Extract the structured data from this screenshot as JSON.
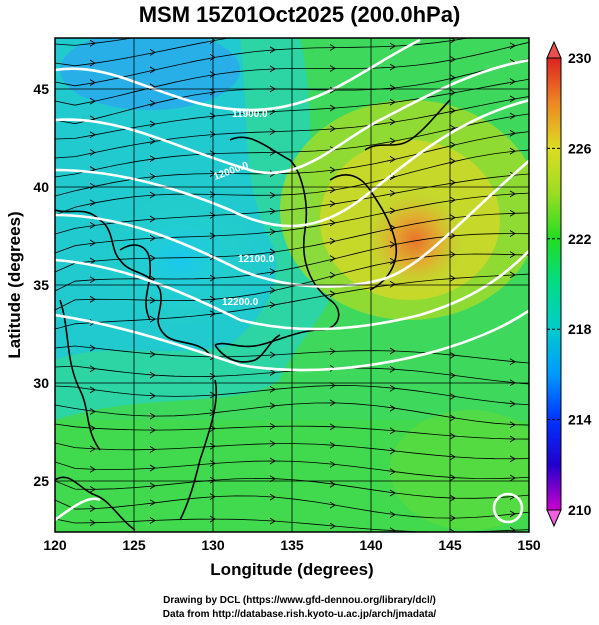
{
  "title": "MSM 15Z01Oct2025 (200.0hPa)",
  "x_axis": {
    "label": "Longitude (degrees)",
    "min": 120,
    "max": 150,
    "ticks": [
      "120",
      "125",
      "130",
      "135",
      "140",
      "145",
      "150"
    ]
  },
  "y_axis": {
    "label": "Latitude  (degrees)",
    "min": 22.4,
    "max": 47.6,
    "ticks": [
      "25",
      "30",
      "35",
      "40",
      "45"
    ]
  },
  "colorbar": {
    "min": 210,
    "max": 230,
    "ticks": [
      "210",
      "214",
      "218",
      "222",
      "226",
      "230"
    ],
    "colors": [
      "#cc00cc",
      "#0000cc",
      "#0044ff",
      "#00aaff",
      "#00dddd",
      "#00dd88",
      "#22dd22",
      "#88dd22",
      "#ccdd22",
      "#eedd22",
      "#ee9922",
      "#ee5522",
      "#dd2222"
    ]
  },
  "contour_labels": [
    "11900.0",
    "12000.0",
    "12100.0",
    "12200.0"
  ],
  "credits": {
    "line1": "Drawing by DCL (https://www.gfd-dennou.org/library/dcl/)",
    "line2": "Data from http://database.rish.kyoto-u.ac.jp/arch/jmadata/"
  }
}
